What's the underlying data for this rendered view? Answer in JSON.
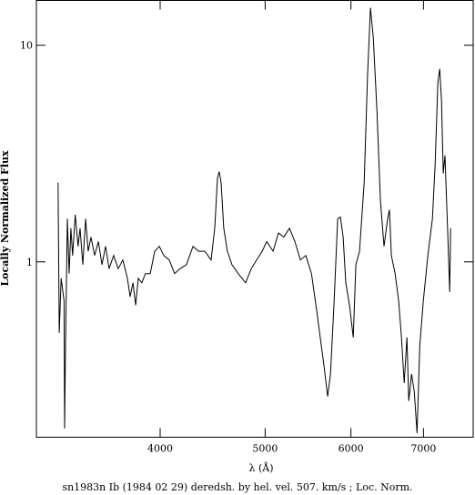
{
  "chart_data": {
    "type": "line",
    "xlabel": "λ (Å)",
    "ylabel": "Locally Normalized Flux",
    "caption": "sn1983n Ib (1984 02 29) deredsh. by hel. vel.   507. km/s ;  Loc. Norm.",
    "xlog": true,
    "ylog": true,
    "color": "#000000",
    "xlim": [
      3075,
      7780
    ],
    "ylim": [
      0.155,
      16.1
    ],
    "xticks": [
      4000,
      5000,
      6000,
      7000
    ],
    "yticks": [
      1,
      10
    ],
    "x": [
      3220,
      3228,
      3241,
      3261,
      3265,
      3271,
      3284,
      3297,
      3309,
      3321,
      3340,
      3360,
      3374,
      3394,
      3414,
      3433,
      3453,
      3480,
      3508,
      3535,
      3562,
      3589,
      3624,
      3659,
      3695,
      3731,
      3753,
      3775,
      3797,
      3818,
      3847,
      3877,
      3917,
      3954,
      3993,
      4031,
      4078,
      4125,
      4173,
      4230,
      4289,
      4340,
      4398,
      4458,
      4492,
      4518,
      4535,
      4553,
      4579,
      4615,
      4659,
      4722,
      4797,
      4854,
      4910,
      4968,
      5017,
      5085,
      5143,
      5202,
      5265,
      5327,
      5389,
      5452,
      5517,
      5578,
      5621,
      5664,
      5711,
      5745,
      5790,
      5833,
      5867,
      5901,
      5935,
      5982,
      6029,
      6063,
      6110,
      6171,
      6217,
      6254,
      6292,
      6340,
      6389,
      6437,
      6487,
      6512,
      6538,
      6590,
      6641,
      6680,
      6719,
      6758,
      6785,
      6825,
      6865,
      6905,
      6945,
      6998,
      7066,
      7135,
      7176,
      7218,
      7245,
      7273,
      7300,
      7328,
      7373,
      7401,
      7415
    ],
    "values": [
      2.32,
      0.47,
      0.84,
      0.66,
      0.17,
      0.407,
      1.58,
      0.882,
      1.43,
      1.07,
      1.65,
      1.18,
      1.43,
      0.97,
      1.58,
      1.12,
      1.3,
      1.07,
      1.24,
      0.97,
      1.18,
      0.93,
      1.07,
      0.93,
      1.02,
      0.84,
      0.69,
      0.8,
      0.63,
      0.84,
      0.8,
      0.882,
      0.882,
      1.12,
      1.18,
      1.07,
      1.02,
      0.882,
      0.93,
      0.97,
      1.18,
      1.12,
      1.12,
      1.02,
      1.43,
      2.44,
      2.61,
      2.32,
      1.43,
      1.12,
      0.97,
      0.882,
      0.8,
      0.93,
      1.02,
      1.12,
      1.24,
      1.12,
      1.36,
      1.3,
      1.43,
      1.24,
      1.02,
      1.07,
      0.882,
      0.6,
      0.448,
      0.335,
      0.239,
      0.304,
      0.66,
      1.58,
      1.61,
      1.3,
      0.8,
      0.63,
      0.448,
      0.97,
      1.12,
      2.32,
      7.41,
      14.9,
      10.9,
      5.03,
      1.91,
      1.18,
      1.58,
      1.74,
      1.07,
      0.882,
      0.66,
      0.448,
      0.276,
      0.448,
      0.228,
      0.304,
      0.251,
      0.162,
      0.407,
      0.66,
      1.07,
      1.58,
      2.82,
      6.73,
      7.78,
      5.54,
      2.56,
      3.1,
      1.3,
      0.727,
      1.43
    ]
  }
}
